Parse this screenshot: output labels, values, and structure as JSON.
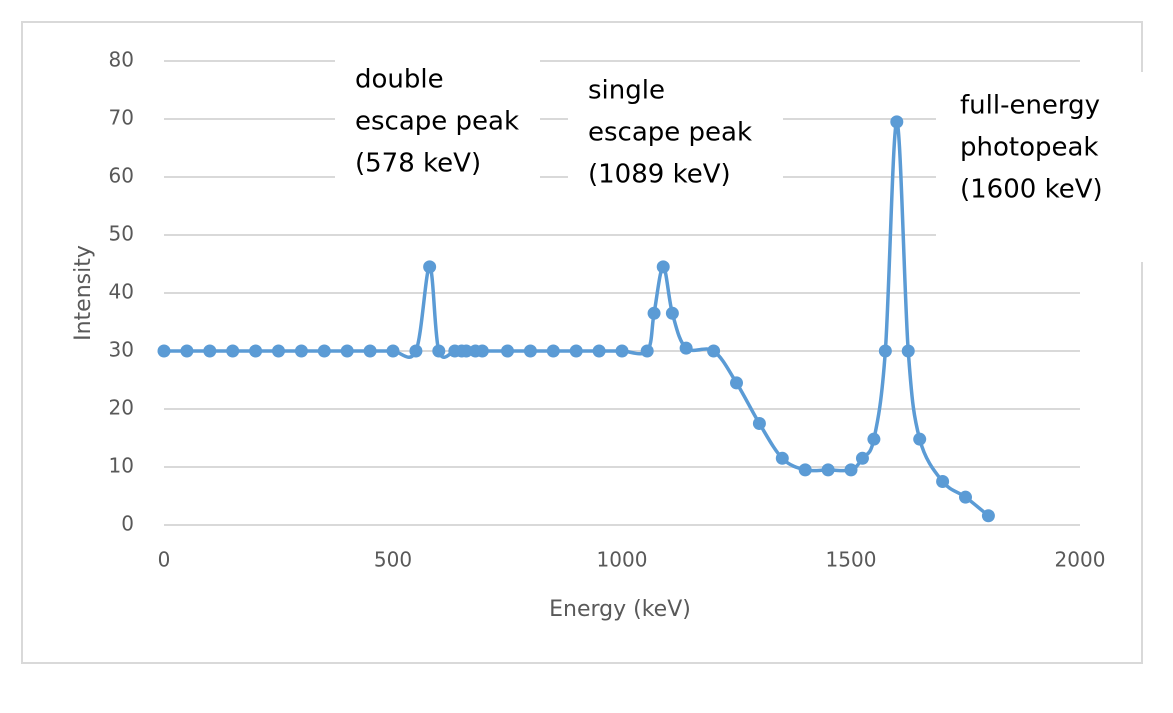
{
  "chart_data": {
    "type": "line",
    "x_label": "Energy (keV)",
    "y_label": "Intensity",
    "series": [
      {
        "color": "#5b9bd5",
        "x": [
          0,
          50,
          100,
          150,
          200,
          250,
          300,
          350,
          400,
          450,
          500,
          550,
          580,
          600,
          635,
          650,
          660,
          680,
          695,
          750,
          800,
          850,
          900,
          950,
          1000,
          1055,
          1070,
          1090,
          1110,
          1140,
          1200,
          1250,
          1300,
          1350,
          1400,
          1450,
          1500,
          1525,
          1550,
          1575,
          1600,
          1625,
          1650,
          1700,
          1750,
          1800
        ],
        "values": [
          30,
          30,
          30,
          30,
          30,
          30,
          30,
          30,
          30,
          30,
          30,
          30,
          44.5,
          30,
          30,
          30,
          30,
          30,
          30,
          30,
          30,
          30,
          30,
          30,
          30,
          30,
          36.5,
          44.5,
          36.5,
          30.5,
          30,
          24.5,
          17.5,
          11.5,
          9.5,
          9.5,
          9.5,
          11.5,
          14.8,
          30,
          69.5,
          30,
          14.8,
          7.5,
          4.8,
          1.6
        ]
      }
    ],
    "xlim": [
      0,
      2000
    ],
    "xticks": [
      0,
      500,
      1000,
      1500,
      2000
    ],
    "ylim": [
      0,
      80
    ],
    "yticks": [
      0,
      10,
      20,
      30,
      40,
      50,
      60,
      70,
      80
    ],
    "grid": true,
    "smooth": true,
    "annotations": [
      {
        "lines": [
          "double",
          "escape peak",
          "(578 keV)"
        ]
      },
      {
        "lines": [
          "single",
          "escape peak",
          "(1089 keV)"
        ]
      },
      {
        "lines": [
          "full-energy",
          "photopeak",
          "(1600 keV)"
        ]
      }
    ]
  }
}
